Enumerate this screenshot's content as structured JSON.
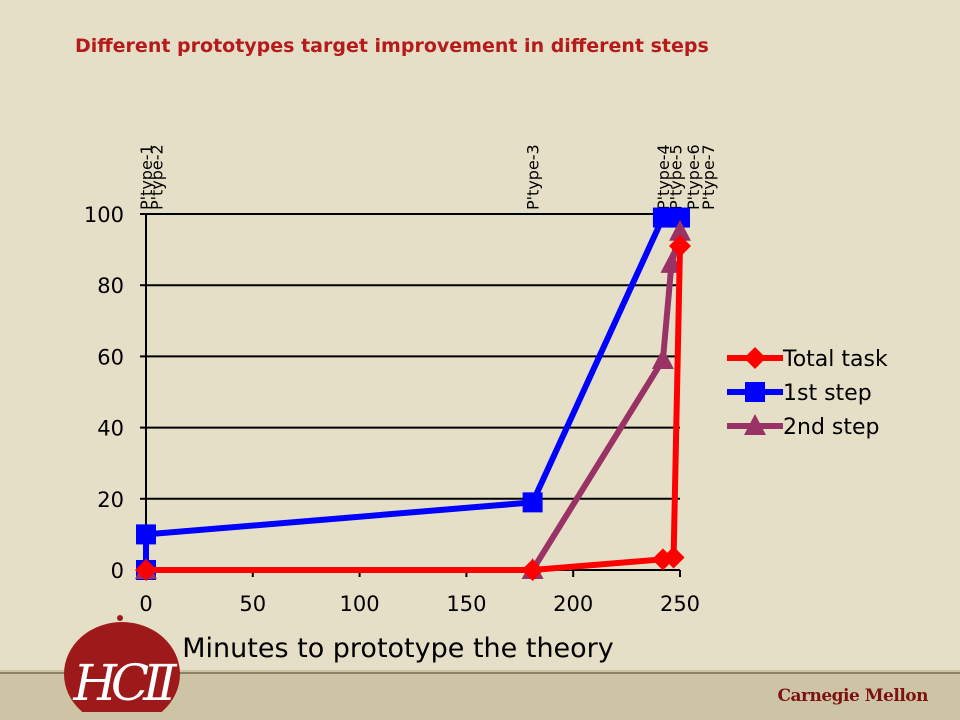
{
  "slide": {
    "title": "Different prototypes target improvement in different steps",
    "logo_text": "HCII",
    "brand": "Carnegie Mellon"
  },
  "colors": {
    "background": "#e6dfc7",
    "title": "#b51b1b",
    "total_task": "#ff0000",
    "first_step": "#0000ff",
    "second_step": "#993366",
    "logo": "#9e1a1a"
  },
  "chart_data": {
    "type": "line",
    "title": "",
    "xlabel": "Minutes to prototype the theory",
    "ylabel": "",
    "xlim": [
      0,
      250
    ],
    "ylim": [
      0,
      100
    ],
    "xticks": [
      0,
      50,
      100,
      150,
      200,
      250
    ],
    "yticks": [
      0,
      20,
      40,
      60,
      80,
      100
    ],
    "grid": "horizontal",
    "legend": "right",
    "prototypes": [
      {
        "label": "P'type-1",
        "x": 0
      },
      {
        "label": "P'type-2",
        "x": 5
      },
      {
        "label": "P'type-3",
        "x": 181
      },
      {
        "label": "P'type-4",
        "x": 242
      },
      {
        "label": "P'type-5",
        "x": 248
      },
      {
        "label": "P'type-6",
        "x": 256
      },
      {
        "label": "P'type-7",
        "x": 263
      }
    ],
    "series": [
      {
        "name": "Total task",
        "marker": "diamond",
        "color": "#ff0000",
        "points": [
          [
            0,
            0
          ],
          [
            181,
            0
          ],
          [
            242,
            3
          ],
          [
            247,
            3.5
          ],
          [
            250,
            91
          ]
        ]
      },
      {
        "name": "1st step",
        "marker": "square",
        "color": "#0000ff",
        "points": [
          [
            0,
            0
          ],
          [
            0,
            10
          ],
          [
            181,
            19
          ],
          [
            242,
            99
          ],
          [
            250,
            99
          ]
        ]
      },
      {
        "name": "2nd step",
        "marker": "triangle",
        "color": "#993366",
        "points": [
          [
            0,
            0
          ],
          [
            181,
            0
          ],
          [
            242,
            59
          ],
          [
            246,
            86
          ],
          [
            250,
            95
          ]
        ]
      }
    ]
  }
}
